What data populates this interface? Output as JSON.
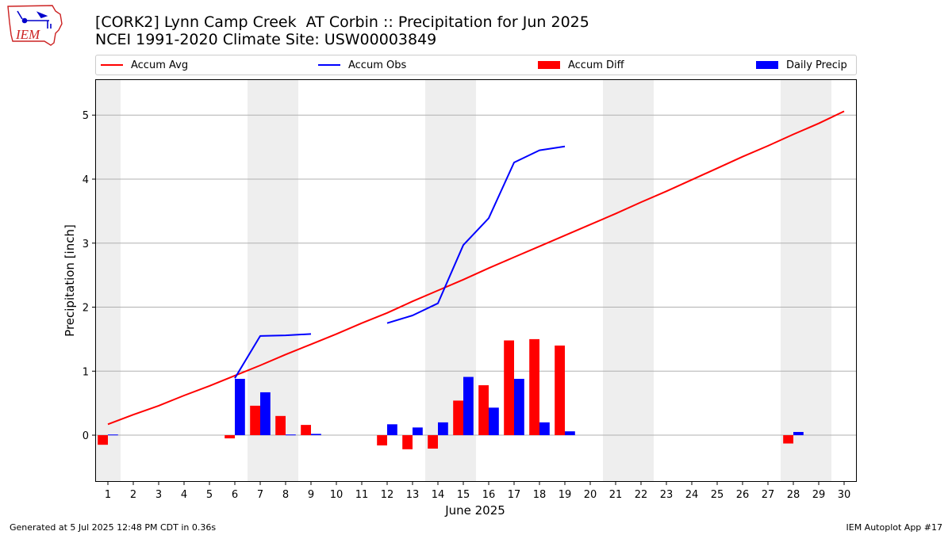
{
  "header": {
    "title_line1": "[CORK2] Lynn Camp Creek  AT Corbin :: Precipitation for Jun 2025",
    "title_line2": "NCEI 1991-2020 Climate Site: USW00003849",
    "logo_text": "IEM"
  },
  "footer": {
    "left": "Generated at 5 Jul 2025 12:48 PM CDT in 0.36s",
    "right": "IEM Autoplot App #17"
  },
  "colors": {
    "accum_avg": "#ff0000",
    "accum_obs": "#0000ff",
    "accum_diff": "#ff0000",
    "daily_precip": "#0000ff",
    "weekend_shade": "#eeeeee",
    "grid": "#b0b0b0",
    "logo": "#cc2222"
  },
  "chart_data": {
    "type": "bar",
    "xlabel": "June 2025",
    "ylabel": "Precipitation [inch]",
    "ylim": [
      -0.73,
      5.56
    ],
    "yticks": [
      0,
      1,
      2,
      3,
      4,
      5
    ],
    "xticks": [
      1,
      2,
      3,
      4,
      5,
      6,
      7,
      8,
      9,
      10,
      11,
      12,
      13,
      14,
      15,
      16,
      17,
      18,
      19,
      20,
      21,
      22,
      23,
      24,
      25,
      26,
      27,
      28,
      29,
      30
    ],
    "grid": "horizontal",
    "legend_position": "top",
    "weekend_days": [
      1,
      7,
      8,
      14,
      15,
      21,
      22,
      28,
      29
    ],
    "series": [
      {
        "name": "Accum Avg",
        "kind": "line",
        "x": [
          1,
          2,
          3,
          4,
          5,
          6,
          7,
          8,
          9,
          10,
          11,
          12,
          13,
          14,
          15,
          16,
          17,
          18,
          19,
          20,
          21,
          22,
          23,
          24,
          25,
          26,
          27,
          28,
          29,
          30
        ],
        "values": [
          0.17,
          0.32,
          0.46,
          0.62,
          0.77,
          0.93,
          1.09,
          1.26,
          1.42,
          1.58,
          1.75,
          1.91,
          2.09,
          2.26,
          2.43,
          2.61,
          2.78,
          2.95,
          3.12,
          3.29,
          3.46,
          3.64,
          3.81,
          3.99,
          4.17,
          4.35,
          4.52,
          4.7,
          4.87,
          5.06
        ]
      },
      {
        "name": "Accum Obs",
        "kind": "line",
        "x": [
          1,
          2,
          3,
          4,
          5,
          6,
          7,
          8,
          9,
          10,
          11,
          12,
          13,
          14,
          15,
          16,
          17,
          18,
          19
        ],
        "values": [
          null,
          null,
          null,
          null,
          null,
          0.89,
          1.55,
          1.56,
          1.58,
          null,
          null,
          1.75,
          1.87,
          2.06,
          2.97,
          3.39,
          4.26,
          4.45,
          4.51
        ]
      },
      {
        "name": "Accum Diff",
        "kind": "bar",
        "x": [
          1,
          6,
          7,
          8,
          9,
          12,
          13,
          14,
          15,
          16,
          17,
          18,
          19,
          28
        ],
        "values": [
          -0.15,
          -0.05,
          0.46,
          0.3,
          0.16,
          -0.16,
          -0.22,
          -0.21,
          0.54,
          0.78,
          1.48,
          1.5,
          1.4,
          -0.13
        ]
      },
      {
        "name": "Daily Precip",
        "kind": "bar",
        "x": [
          1,
          6,
          7,
          8,
          9,
          12,
          13,
          14,
          15,
          16,
          17,
          18,
          19,
          28
        ],
        "values": [
          0.01,
          0.88,
          0.67,
          0.01,
          0.02,
          0.17,
          0.12,
          0.2,
          0.91,
          0.43,
          0.88,
          0.2,
          0.06,
          0.05
        ]
      }
    ]
  }
}
